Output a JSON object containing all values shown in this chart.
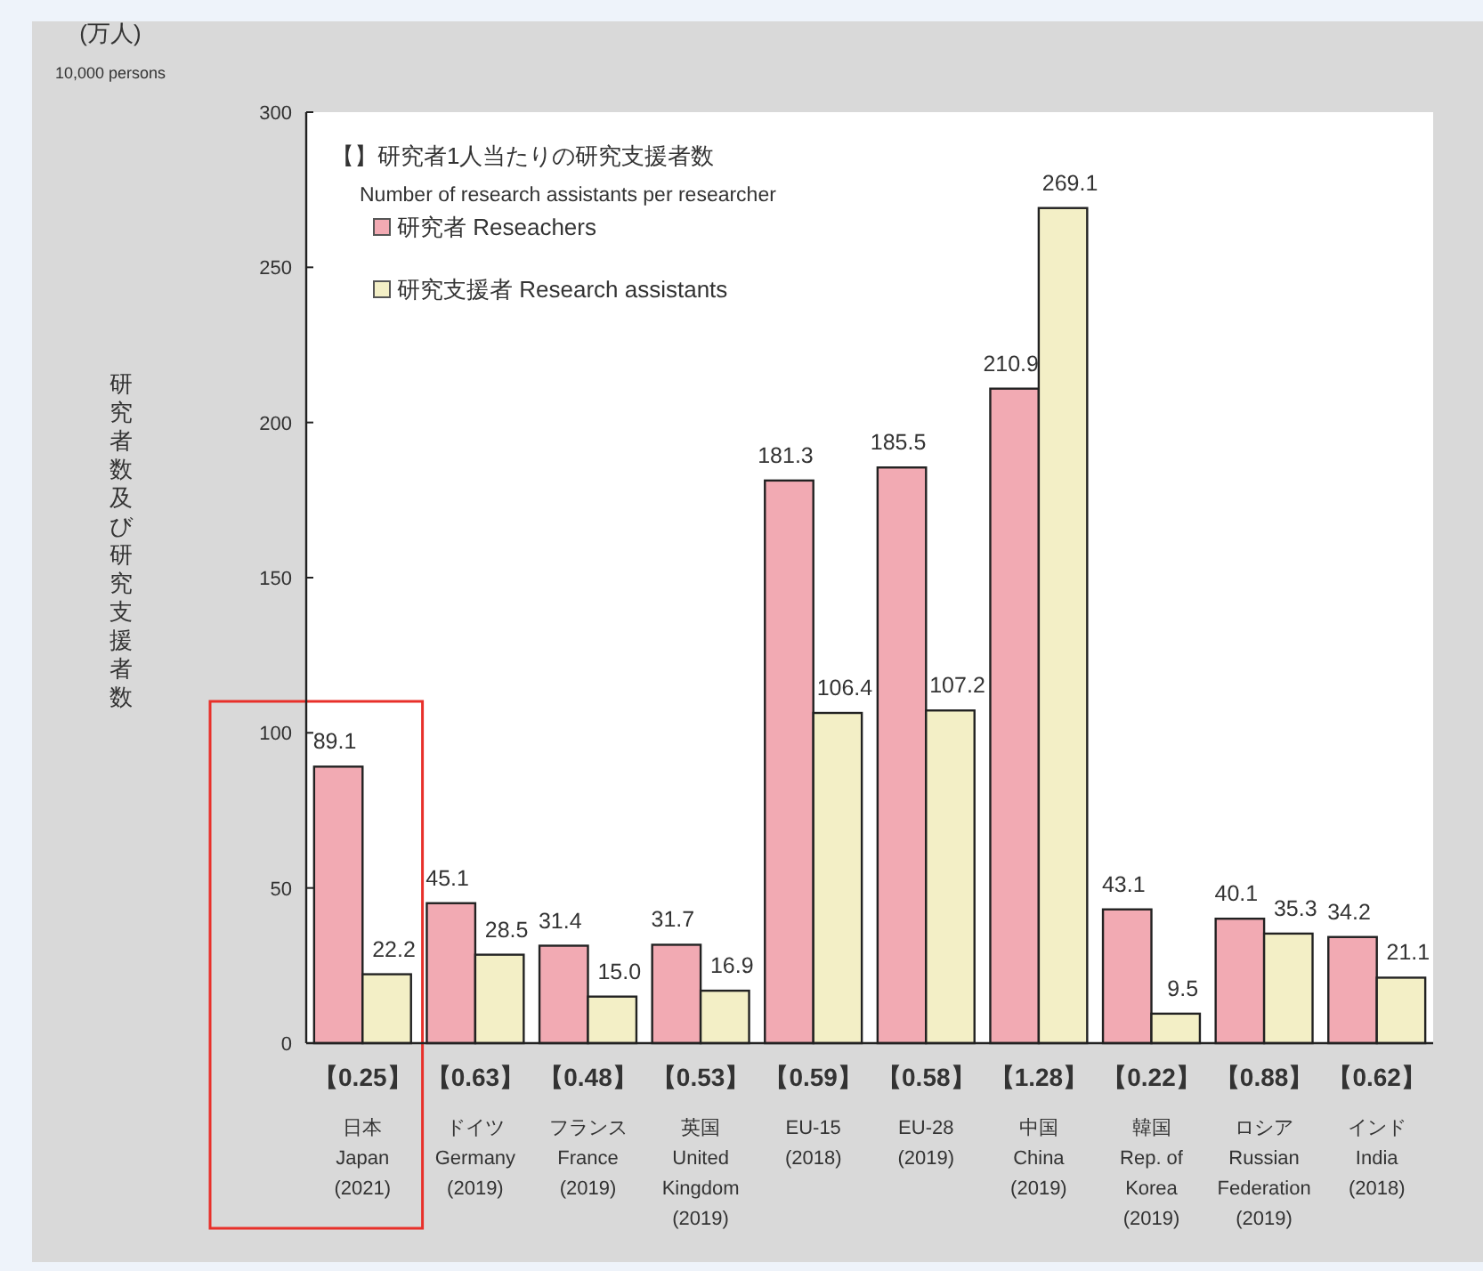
{
  "chart_data": {
    "type": "bar",
    "ylabel": "研究者数及び研究支援者数",
    "categories": [
      "日本Japan\n(2021)",
      "ドイツGermany\n(2019)",
      "フランスFrance\n(2019)",
      "英国United\nKingdom\n(2019)",
      "EU-15\n(2018)",
      "EU-28\n(2019)",
      "中国China\n(2019)",
      "韓国Rep. of\nKorea\n(2019)",
      "ロシアRussian\nFederation\n(2019)",
      "インドIndia\n(2018)"
    ],
    "series": [
      {
        "name": "研究者 Reseachers",
        "color": "#f2aab3",
        "values": [
          89.1,
          45.1,
          31.4,
          31.7,
          181.3,
          185.5,
          210.9,
          43.1,
          40.1,
          34.2
        ],
        "value_labels": [
          "89.1",
          "45.1",
          "31.4",
          "31.7",
          "181.3",
          "185.5",
          "210.9",
          "43.1",
          "40.1",
          "34.2"
        ]
      },
      {
        "name": "研究支援者 Research assistants",
        "color": "#f3efc6",
        "values": [
          22.2,
          28.5,
          15.0,
          16.9,
          106.4,
          107.2,
          269.1,
          9.5,
          35.3,
          21.1
        ],
        "value_labels": [
          "22.2",
          "28.5",
          "15.0",
          "16.9",
          "106.4",
          "107.2",
          "269.1",
          "9.5",
          "35.3",
          "21.1"
        ]
      }
    ],
    "ylim": [
      0,
      300
    ],
    "yticks": [
      0,
      50,
      100,
      150,
      200,
      250,
      300
    ],
    "legend": "top left",
    "annotations": [
      "(万人)",
      "10,000 persons",
      "【】研究者1人当たりの研究支援者数",
      "Number of research assistants per researcher",
      "【0.25】",
      "【0.63】",
      "【0.48】",
      "【0.53】",
      "【0.59】",
      "【0.58】",
      "【1.28】",
      "【0.22】",
      "【0.88】",
      "【0.62】"
    ]
  }
}
